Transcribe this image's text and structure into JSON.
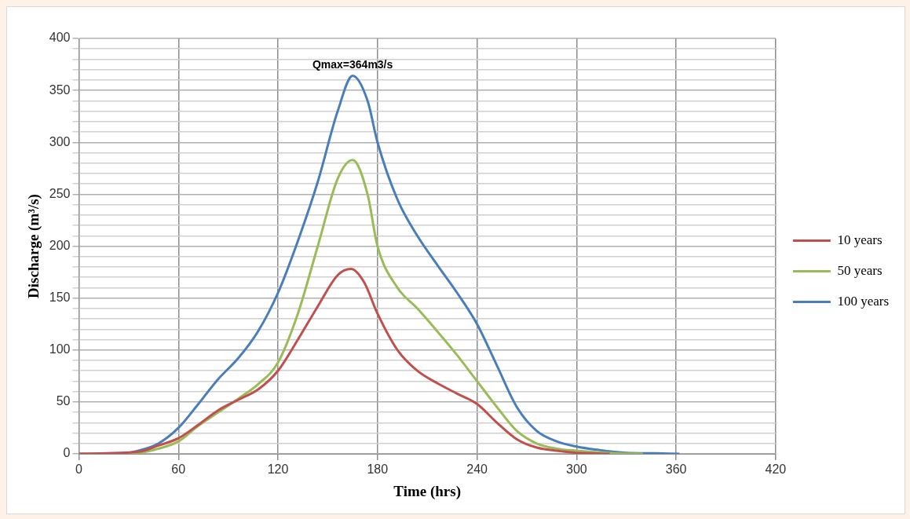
{
  "chart_data": {
    "type": "line",
    "xlabel": "Time (hrs)",
    "ylabel": "Discharge (m³/s)",
    "xlim": [
      0,
      420
    ],
    "xticks": [
      0,
      60,
      120,
      180,
      240,
      300,
      360,
      420
    ],
    "ylim": [
      0,
      400
    ],
    "yticks": [
      0,
      {
        "value": 10,
        "label": null
      },
      {
        "value": 20,
        "label": null
      },
      {
        "value": 30,
        "label": null
      },
      {
        "value": 40,
        "label": null
      },
      50,
      {
        "value": 60,
        "label": null
      },
      {
        "value": 70,
        "label": null
      },
      {
        "value": 80,
        "label": null
      },
      {
        "value": 90,
        "label": null
      },
      100,
      {
        "value": 110,
        "label": null
      },
      {
        "value": 120,
        "label": null
      },
      {
        "value": 130,
        "label": null
      },
      {
        "value": 140,
        "label": null
      },
      150,
      {
        "value": 160,
        "label": null
      },
      {
        "value": 170,
        "label": null
      },
      {
        "value": 180,
        "label": null
      },
      {
        "value": 190,
        "label": null
      },
      200,
      {
        "value": 210,
        "label": null
      },
      {
        "value": 220,
        "label": null
      },
      {
        "value": 230,
        "label": null
      },
      {
        "value": 240,
        "label": null
      },
      250,
      {
        "value": 260,
        "label": null
      },
      {
        "value": 270,
        "label": null
      },
      {
        "value": 280,
        "label": null
      },
      {
        "value": 290,
        "label": null
      },
      300,
      {
        "value": 310,
        "label": null
      },
      {
        "value": 320,
        "label": null
      },
      {
        "value": 330,
        "label": null
      },
      {
        "value": 340,
        "label": null
      },
      350,
      {
        "value": 360,
        "label": null
      },
      {
        "value": 370,
        "label": null
      },
      {
        "value": 380,
        "label": null
      },
      {
        "value": 390,
        "label": null
      },
      400
    ],
    "grid": true,
    "legend": "right",
    "marker": "none",
    "line_style": "solid",
    "annotations": [
      {
        "text": "Qmax=364m3/s",
        "x": 165,
        "y": 364
      }
    ],
    "series": [
      {
        "name": "10 years",
        "color": "#c0504d",
        "x": [
          0,
          36,
          48,
          60,
          72,
          84,
          96,
          108,
          120,
          132,
          144,
          156,
          164,
          172,
          180,
          192,
          204,
          216,
          228,
          240,
          252,
          264,
          276,
          288,
          300,
          320
        ],
        "values": [
          0,
          2,
          8,
          15,
          28,
          42,
          52,
          62,
          80,
          110,
          142,
          172,
          178,
          165,
          135,
          100,
          80,
          68,
          58,
          48,
          30,
          14,
          6,
          3,
          1,
          0
        ]
      },
      {
        "name": "50 years",
        "color": "#9bbb59",
        "x": [
          0,
          36,
          48,
          60,
          72,
          84,
          96,
          108,
          120,
          132,
          144,
          156,
          165,
          174,
          180,
          192,
          204,
          216,
          228,
          240,
          252,
          264,
          276,
          288,
          300,
          324,
          340
        ],
        "values": [
          0,
          1,
          5,
          12,
          27,
          40,
          53,
          67,
          88,
          135,
          200,
          265,
          283,
          250,
          200,
          160,
          140,
          118,
          95,
          70,
          45,
          22,
          10,
          5,
          3,
          0.5,
          0
        ]
      },
      {
        "name": "100 years",
        "color": "#4a7ebb",
        "x": [
          0,
          24,
          36,
          48,
          60,
          72,
          84,
          96,
          108,
          120,
          132,
          144,
          156,
          165,
          174,
          180,
          192,
          204,
          216,
          228,
          240,
          252,
          264,
          276,
          288,
          300,
          312,
          330,
          348,
          362
        ],
        "values": [
          0,
          0,
          3,
          10,
          25,
          48,
          72,
          92,
          118,
          155,
          205,
          262,
          330,
          364,
          340,
          300,
          245,
          210,
          182,
          155,
          125,
          85,
          45,
          22,
          12,
          7,
          4,
          1,
          0.5,
          0
        ]
      }
    ]
  }
}
